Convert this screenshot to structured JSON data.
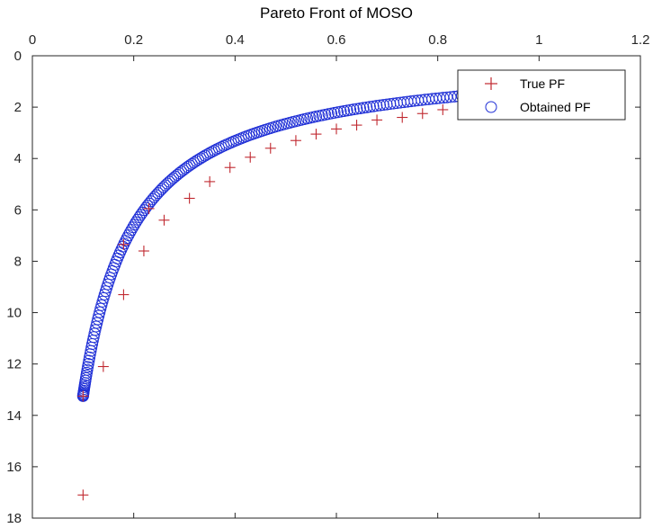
{
  "chart_data": {
    "type": "scatter",
    "title": "Pareto Front of MOSO",
    "xlabel": "",
    "ylabel": "",
    "xlim": [
      0,
      1.2
    ],
    "ylim": [
      0,
      18
    ],
    "x_axis_location": "top",
    "y_axis_direction": "reversed",
    "x_ticks": [
      "0",
      "0.2",
      "0.4",
      "0.6",
      "0.8",
      "1",
      "1.2"
    ],
    "y_ticks": [
      "0",
      "2",
      "4",
      "6",
      "8",
      "10",
      "12",
      "14",
      "16",
      "18"
    ],
    "grid": false,
    "legend_position": "top-right",
    "series": [
      {
        "name": "True PF",
        "marker": "plus",
        "color": "#c0282f",
        "points": [
          [
            0.1,
            17.1
          ],
          [
            0.1,
            13.25
          ],
          [
            0.14,
            12.1
          ],
          [
            0.18,
            9.3
          ],
          [
            0.18,
            7.35
          ],
          [
            0.22,
            7.6
          ],
          [
            0.23,
            5.95
          ],
          [
            0.26,
            6.4
          ],
          [
            0.31,
            5.55
          ],
          [
            0.35,
            4.9
          ],
          [
            0.39,
            4.35
          ],
          [
            0.43,
            3.95
          ],
          [
            0.47,
            3.6
          ],
          [
            0.52,
            3.3
          ],
          [
            0.56,
            3.05
          ],
          [
            0.6,
            2.85
          ],
          [
            0.64,
            2.7
          ],
          [
            0.68,
            2.5
          ],
          [
            0.73,
            2.4
          ],
          [
            0.77,
            2.25
          ],
          [
            0.81,
            2.1
          ],
          [
            0.85,
            2.0
          ],
          [
            0.89,
            1.9
          ]
        ]
      },
      {
        "name": "Obtained PF",
        "marker": "circle",
        "color": "#1f2fd6",
        "curve": {
          "x_start": 0.1,
          "x_end": 0.9,
          "count": 190,
          "y_at_x_0_1": 13.25
        }
      }
    ]
  }
}
